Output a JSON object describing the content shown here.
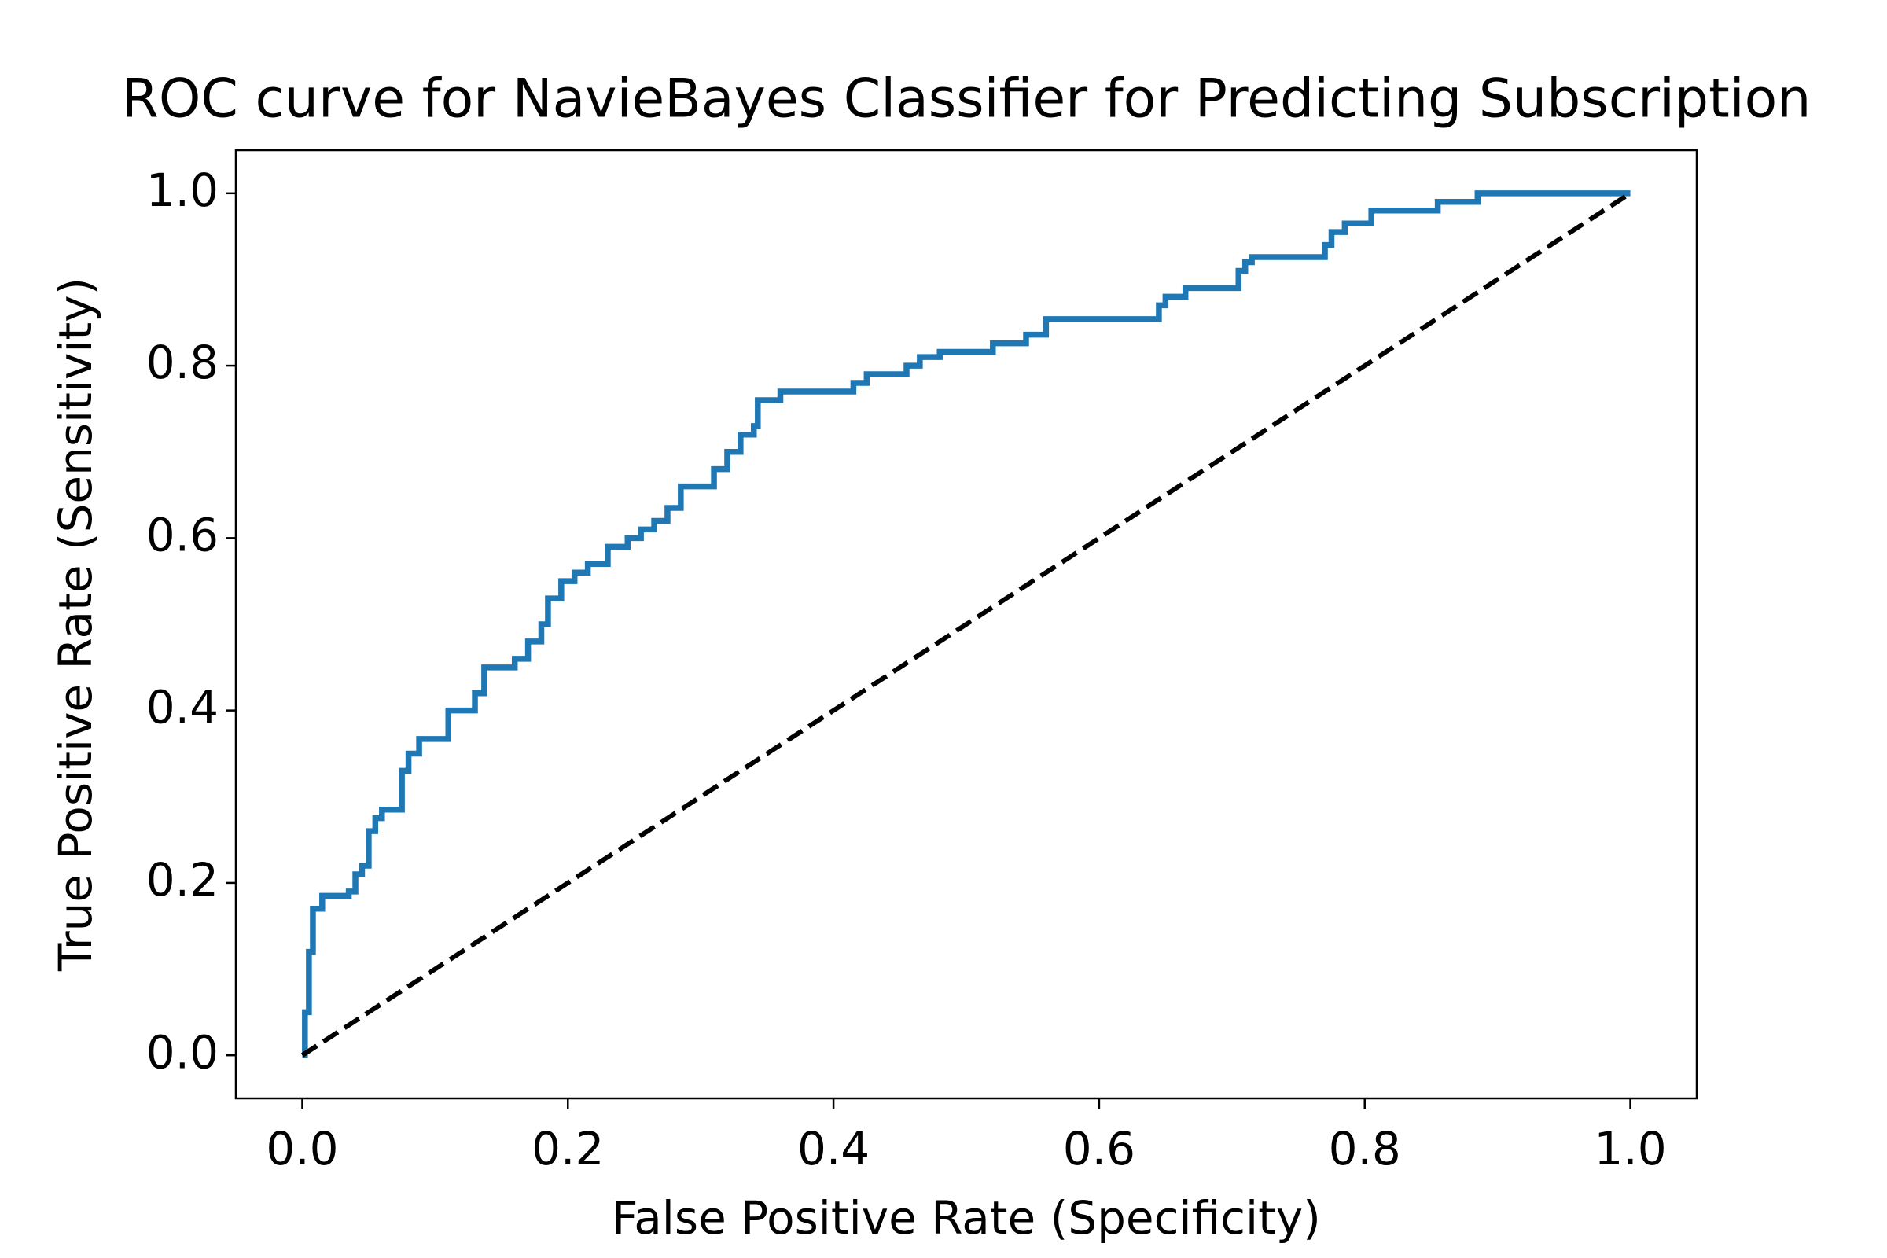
{
  "chart_data": {
    "type": "line",
    "title": "ROC curve for NavieBayes Classifier for Predicting Subscription",
    "x_label": "False Positive Rate (Specificity)",
    "y_label": "True Positive Rate (Sensitivity)",
    "xlim": [
      -0.05,
      1.05
    ],
    "ylim": [
      -0.05,
      1.05
    ],
    "xticks": [
      {
        "value": 0,
        "label": "0.0"
      },
      0.2,
      0.4,
      0.6,
      0.8,
      {
        "value": 1,
        "label": "1.0"
      }
    ],
    "yticks": [
      {
        "value": 0,
        "label": "0.0"
      },
      0.2,
      0.4,
      0.6,
      0.8,
      {
        "value": 1,
        "label": "1.0"
      }
    ],
    "grid": false,
    "series": [
      {
        "color": "#1f77b4",
        "style": "solid",
        "x": [
          0,
          0.002,
          0.002,
          0.005,
          0.005,
          0.008,
          0.008,
          0.015,
          0.015,
          0.035,
          0.035,
          0.04,
          0.04,
          0.045,
          0.045,
          0.05,
          0.05,
          0.055,
          0.055,
          0.06,
          0.06,
          0.075,
          0.075,
          0.08,
          0.08,
          0.088,
          0.088,
          0.11,
          0.11,
          0.13,
          0.13,
          0.137,
          0.137,
          0.16,
          0.16,
          0.17,
          0.17,
          0.18,
          0.18,
          0.185,
          0.185,
          0.195,
          0.195,
          0.205,
          0.205,
          0.215,
          0.215,
          0.23,
          0.23,
          0.245,
          0.245,
          0.255,
          0.255,
          0.265,
          0.265,
          0.275,
          0.275,
          0.285,
          0.285,
          0.31,
          0.31,
          0.32,
          0.32,
          0.33,
          0.33,
          0.34,
          0.34,
          0.343,
          0.343,
          0.36,
          0.36,
          0.415,
          0.415,
          0.425,
          0.425,
          0.455,
          0.455,
          0.465,
          0.465,
          0.48,
          0.48,
          0.52,
          0.52,
          0.545,
          0.545,
          0.56,
          0.56,
          0.645,
          0.645,
          0.65,
          0.65,
          0.665,
          0.665,
          0.705,
          0.705,
          0.71,
          0.71,
          0.715,
          0.715,
          0.77,
          0.77,
          0.775,
          0.775,
          0.785,
          0.785,
          0.805,
          0.805,
          0.855,
          0.855,
          0.885,
          0.885,
          1.0
        ],
        "values": [
          0,
          0,
          0.05,
          0.05,
          0.12,
          0.12,
          0.17,
          0.17,
          0.185,
          0.185,
          0.19,
          0.19,
          0.21,
          0.21,
          0.22,
          0.22,
          0.26,
          0.26,
          0.275,
          0.275,
          0.285,
          0.285,
          0.33,
          0.33,
          0.35,
          0.35,
          0.367,
          0.367,
          0.4,
          0.4,
          0.42,
          0.42,
          0.45,
          0.45,
          0.46,
          0.46,
          0.48,
          0.48,
          0.5,
          0.5,
          0.53,
          0.53,
          0.55,
          0.55,
          0.56,
          0.56,
          0.57,
          0.57,
          0.59,
          0.59,
          0.6,
          0.6,
          0.61,
          0.61,
          0.62,
          0.62,
          0.635,
          0.635,
          0.66,
          0.66,
          0.68,
          0.68,
          0.7,
          0.7,
          0.72,
          0.72,
          0.73,
          0.73,
          0.76,
          0.76,
          0.77,
          0.77,
          0.78,
          0.78,
          0.79,
          0.79,
          0.8,
          0.8,
          0.81,
          0.81,
          0.816,
          0.816,
          0.826,
          0.826,
          0.836,
          0.836,
          0.854,
          0.854,
          0.87,
          0.87,
          0.88,
          0.88,
          0.89,
          0.89,
          0.91,
          0.91,
          0.92,
          0.92,
          0.926,
          0.926,
          0.94,
          0.94,
          0.955,
          0.955,
          0.965,
          0.965,
          0.98,
          0.98,
          0.99,
          0.99,
          1.0,
          1.0
        ]
      },
      {
        "color": "#000000",
        "style": "dashed",
        "x": [
          0,
          1
        ],
        "values": [
          0,
          1
        ]
      }
    ]
  }
}
